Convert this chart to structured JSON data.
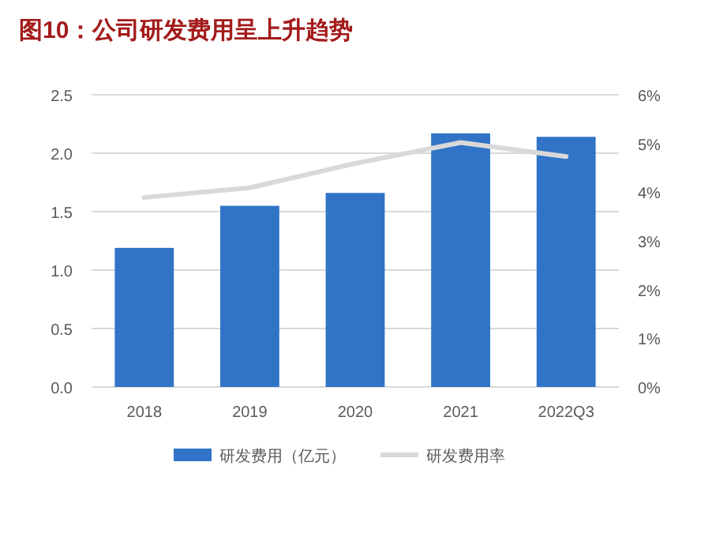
{
  "chart_data": {
    "type": "bar",
    "title": "图10：公司研发费用呈上升趋势",
    "categories": [
      "2018",
      "2019",
      "2020",
      "2021",
      "2022Q3"
    ],
    "series": [
      {
        "name": "研发费用（亿元）",
        "color": "#3174c7",
        "values": [
          1.19,
          1.55,
          1.66,
          2.17,
          2.14
        ]
      },
      {
        "name": "研发费用率",
        "type": "line",
        "axis": "y2",
        "color": "#d9d9d9",
        "values": [
          3.89,
          4.09,
          4.59,
          5.02,
          4.73
        ]
      }
    ],
    "ylim": [
      0,
      2.5
    ],
    "yticks": [
      {
        "value": 0,
        "label": "0.0"
      },
      {
        "value": 0.5,
        "label": "0.5"
      },
      {
        "value": 1,
        "label": "1.0"
      },
      {
        "value": 1.5,
        "label": "1.5"
      },
      {
        "value": 2,
        "label": "2.0"
      },
      {
        "value": 2.5,
        "label": "2.5"
      }
    ],
    "y2lim": [
      0,
      6
    ],
    "y2ticks": [
      {
        "value": 0,
        "label": "0%"
      },
      {
        "value": 1,
        "label": "1%"
      },
      {
        "value": 2,
        "label": "2%"
      },
      {
        "value": 3,
        "label": "3%"
      },
      {
        "value": 4,
        "label": "4%"
      },
      {
        "value": 5,
        "label": "5%"
      },
      {
        "value": 6,
        "label": "6%"
      }
    ],
    "grid": "y",
    "legend": "bottom"
  }
}
